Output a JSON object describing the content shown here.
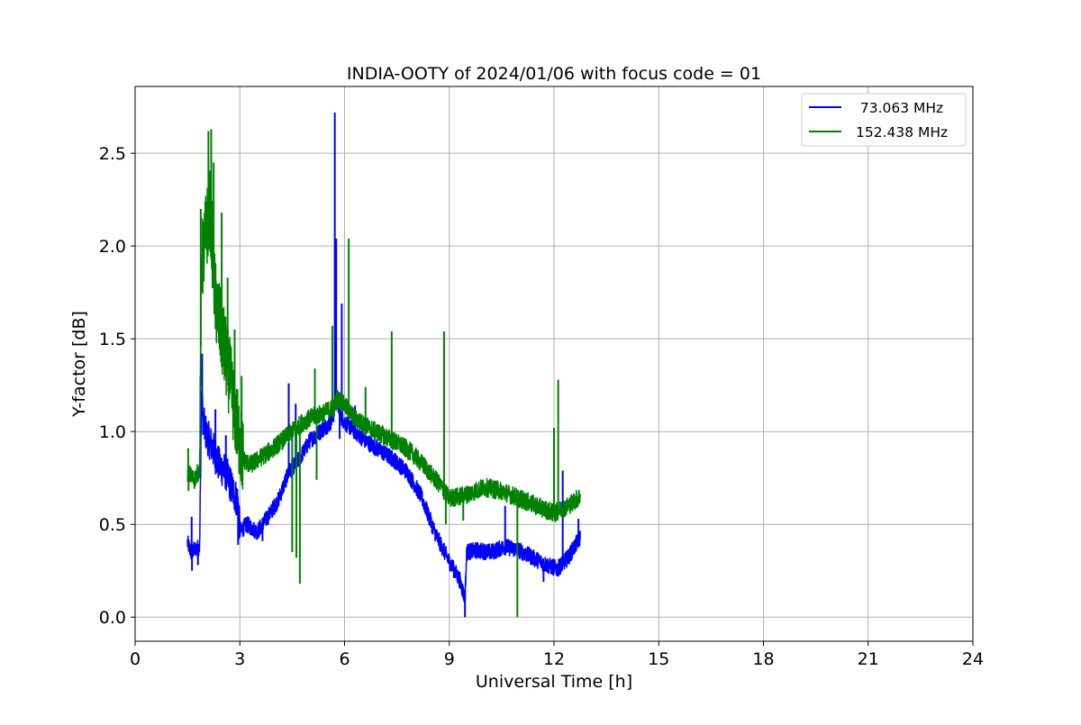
{
  "chart_data": {
    "type": "line",
    "title": "INDIA-OOTY of 2024/01/06 with focus code = 01",
    "xlabel": "Universal Time [h]",
    "ylabel": "Y-factor [dB]",
    "xlim": [
      0,
      24
    ],
    "ylim": [
      -0.13,
      2.86
    ],
    "xticks": [
      0,
      3,
      6,
      9,
      12,
      15,
      18,
      21,
      24
    ],
    "xtick_labels": [
      "0",
      "3",
      "6",
      "9",
      "12",
      "15",
      "18",
      "21",
      "24"
    ],
    "yticks": [
      0.0,
      0.5,
      1.0,
      1.5,
      2.0,
      2.5
    ],
    "ytick_labels": [
      "0.0",
      "0.5",
      "1.0",
      "1.5",
      "2.0",
      "2.5"
    ],
    "grid": true,
    "legend_position": "top-right",
    "series": [
      {
        "name": "  73.063 MHz",
        "color": "#0000ff",
        "noise": 0.045,
        "x": [
          1.5,
          1.6,
          1.75,
          1.85,
          1.9,
          1.95,
          2.05,
          2.2,
          2.4,
          2.6,
          2.8,
          2.95,
          3.0,
          3.2,
          3.5,
          3.8,
          4.1,
          4.4,
          4.7,
          5.0,
          5.3,
          5.6,
          5.7,
          5.75,
          5.8,
          5.9,
          6.0,
          6.3,
          6.6,
          7.0,
          7.4,
          7.8,
          8.2,
          8.6,
          9.0,
          9.3,
          9.45,
          9.5,
          9.8,
          10.2,
          10.6,
          11.0,
          11.4,
          11.8,
          12.1,
          12.4,
          12.75
        ],
        "y": [
          0.4,
          0.35,
          0.37,
          0.38,
          1.2,
          1.05,
          0.98,
          0.92,
          0.82,
          0.78,
          0.68,
          0.62,
          0.46,
          0.5,
          0.46,
          0.54,
          0.63,
          0.78,
          0.85,
          0.95,
          1.0,
          1.05,
          1.1,
          1.2,
          1.15,
          1.08,
          1.05,
          1.0,
          0.95,
          0.9,
          0.85,
          0.78,
          0.65,
          0.45,
          0.3,
          0.2,
          0.1,
          0.35,
          0.36,
          0.35,
          0.38,
          0.36,
          0.32,
          0.28,
          0.26,
          0.32,
          0.43
        ],
        "spikes": [
          {
            "x": 1.62,
            "y": 0.54
          },
          {
            "x": 1.63,
            "y": 0.25
          },
          {
            "x": 1.8,
            "y": 0.28
          },
          {
            "x": 1.92,
            "y": 1.42
          },
          {
            "x": 2.3,
            "y": 1.12
          },
          {
            "x": 2.6,
            "y": 0.98
          },
          {
            "x": 2.95,
            "y": 0.39
          },
          {
            "x": 3.65,
            "y": 0.41
          },
          {
            "x": 4.4,
            "y": 1.26
          },
          {
            "x": 4.6,
            "y": 1.15
          },
          {
            "x": 5.72,
            "y": 2.72
          },
          {
            "x": 5.76,
            "y": 2.04
          },
          {
            "x": 5.92,
            "y": 1.69
          },
          {
            "x": 5.86,
            "y": 0.96
          },
          {
            "x": 6.3,
            "y": 1.14
          },
          {
            "x": 9.45,
            "y": 0.0
          },
          {
            "x": 10.6,
            "y": 0.6
          },
          {
            "x": 12.25,
            "y": 0.79
          },
          {
            "x": 12.7,
            "y": 0.53
          },
          {
            "x": 11.7,
            "y": 0.19
          }
        ]
      },
      {
        "name": "152.438 MHz",
        "color": "#008000",
        "noise": 0.05,
        "x": [
          1.5,
          1.7,
          1.85,
          1.9,
          1.95,
          2.05,
          2.15,
          2.3,
          2.5,
          2.7,
          2.9,
          3.1,
          3.3,
          3.6,
          3.9,
          4.2,
          4.5,
          4.8,
          5.1,
          5.4,
          5.7,
          5.8,
          6.0,
          6.3,
          6.7,
          7.1,
          7.5,
          7.9,
          8.3,
          8.7,
          9.0,
          9.5,
          10.0,
          10.5,
          11.0,
          11.5,
          12.0,
          12.4,
          12.75
        ],
        "y": [
          0.78,
          0.74,
          0.8,
          1.9,
          1.95,
          2.1,
          2.2,
          1.7,
          1.5,
          1.3,
          1.05,
          0.85,
          0.82,
          0.86,
          0.9,
          0.95,
          1.0,
          1.05,
          1.08,
          1.1,
          1.13,
          1.18,
          1.14,
          1.07,
          1.02,
          0.98,
          0.94,
          0.89,
          0.81,
          0.72,
          0.64,
          0.66,
          0.7,
          0.68,
          0.64,
          0.6,
          0.56,
          0.6,
          0.65
        ],
        "spikes": [
          {
            "x": 1.52,
            "y": 0.91
          },
          {
            "x": 1.53,
            "y": 0.68
          },
          {
            "x": 1.88,
            "y": 2.2
          },
          {
            "x": 2.1,
            "y": 2.62
          },
          {
            "x": 2.18,
            "y": 2.63
          },
          {
            "x": 2.25,
            "y": 2.45
          },
          {
            "x": 2.48,
            "y": 2.18
          },
          {
            "x": 2.65,
            "y": 1.83
          },
          {
            "x": 2.85,
            "y": 1.55
          },
          {
            "x": 3.05,
            "y": 1.3
          },
          {
            "x": 2.95,
            "y": 0.9
          },
          {
            "x": 4.5,
            "y": 0.35
          },
          {
            "x": 4.62,
            "y": 0.32
          },
          {
            "x": 4.72,
            "y": 0.18
          },
          {
            "x": 5.15,
            "y": 1.34
          },
          {
            "x": 5.2,
            "y": 0.74
          },
          {
            "x": 5.65,
            "y": 1.57
          },
          {
            "x": 6.12,
            "y": 2.04
          },
          {
            "x": 6.6,
            "y": 1.24
          },
          {
            "x": 7.35,
            "y": 1.54
          },
          {
            "x": 8.85,
            "y": 1.54
          },
          {
            "x": 8.9,
            "y": 0.5
          },
          {
            "x": 10.95,
            "y": 0.0
          },
          {
            "x": 12.12,
            "y": 1.28
          },
          {
            "x": 12.0,
            "y": 1.02
          },
          {
            "x": 9.4,
            "y": 0.52
          }
        ]
      }
    ]
  }
}
